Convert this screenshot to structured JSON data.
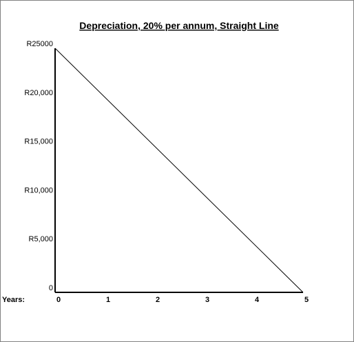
{
  "chart_data": {
    "type": "line",
    "title": "Depreciation, 20% per annum, Straight Line",
    "xlabel": "Years:",
    "ylabel": "",
    "x": [
      0,
      1,
      2,
      3,
      4,
      5
    ],
    "x_tick_labels": [
      "0",
      "1",
      "2",
      "3",
      "4",
      "5"
    ],
    "y_tick_labels": [
      "0",
      "R5,000",
      "R10,000",
      "R15,000",
      "R20,000",
      "R25000"
    ],
    "y_ticks": [
      0,
      5000,
      10000,
      15000,
      20000,
      25000
    ],
    "ylim": [
      0,
      25000
    ],
    "xlim": [
      0,
      5
    ],
    "series": [
      {
        "x": [
          0,
          5
        ],
        "values": [
          25000,
          0
        ]
      }
    ],
    "grid": false,
    "line_color": "#000000"
  }
}
